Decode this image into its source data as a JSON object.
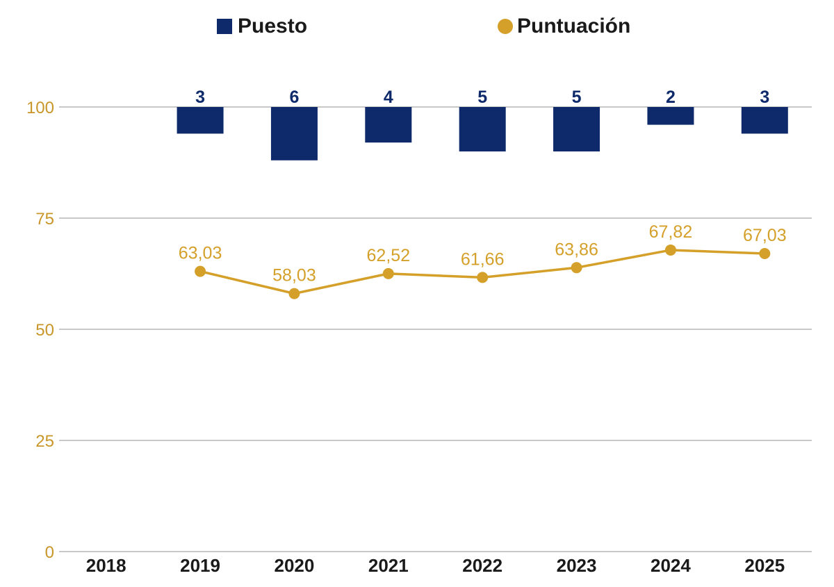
{
  "chart_data": {
    "type": "bar",
    "categories": [
      "2018",
      "2019",
      "2020",
      "2021",
      "2022",
      "2023",
      "2024",
      "2025"
    ],
    "series": [
      {
        "name": "Puesto",
        "type": "bar",
        "values": [
          null,
          3,
          6,
          4,
          5,
          5,
          2,
          3
        ],
        "labels": [
          "",
          "3",
          "6",
          "4",
          "5",
          "5",
          "2",
          "3"
        ],
        "baseline": 100,
        "unit_height": 2
      },
      {
        "name": "Puntuación",
        "type": "line",
        "values": [
          null,
          63.03,
          58.03,
          62.52,
          61.66,
          63.86,
          67.82,
          67.03
        ],
        "labels": [
          "",
          "63,03",
          "58,03",
          "62,52",
          "61,66",
          "63,86",
          "67,82",
          "67,03"
        ]
      }
    ],
    "yticks": [
      "0",
      "25",
      "50",
      "75",
      "100"
    ],
    "ylim": [
      0,
      100
    ],
    "grid": true,
    "legend_position": "top-center",
    "colors": {
      "bar": "#0e2a6b",
      "line": "#d4a02a",
      "ytick": "#c9962a",
      "grid": "#c8c8c8",
      "xtick": "#1a1a1a"
    }
  }
}
